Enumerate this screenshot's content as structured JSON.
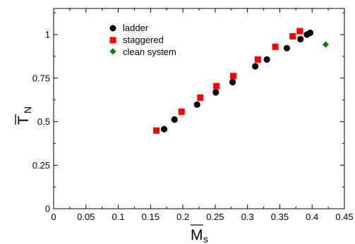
{
  "chart_data": {
    "type": "scatter",
    "xlabel": "M",
    "xlabel_sub": "s",
    "ylabel": "T",
    "ylabel_sub": "N",
    "xlim": [
      0,
      0.45
    ],
    "ylim": [
      0,
      1.15
    ],
    "xticks": [
      "0",
      "0.05",
      "0.1",
      "0.15",
      "0.2",
      "0.25",
      "0.3",
      "0.35",
      "0.4",
      "0.45"
    ],
    "yticks": [
      "0",
      "0.25",
      "0.5",
      "0.75",
      "1"
    ],
    "legend_position": "top-left",
    "series": [
      {
        "name": "ladder",
        "marker": "circle",
        "color": "#000000",
        "points": [
          [
            0.171,
            0.457
          ],
          [
            0.187,
            0.512
          ],
          [
            0.222,
            0.598
          ],
          [
            0.251,
            0.668
          ],
          [
            0.277,
            0.727
          ],
          [
            0.312,
            0.818
          ],
          [
            0.33,
            0.857
          ],
          [
            0.361,
            0.922
          ],
          [
            0.382,
            0.974
          ],
          [
            0.392,
            1.0
          ],
          [
            0.397,
            1.01
          ]
        ]
      },
      {
        "name": "staggered",
        "marker": "square",
        "color": "#ff0000",
        "points": [
          [
            0.159,
            0.449
          ],
          [
            0.198,
            0.557
          ],
          [
            0.227,
            0.638
          ],
          [
            0.252,
            0.704
          ],
          [
            0.278,
            0.762
          ],
          [
            0.316,
            0.857
          ],
          [
            0.343,
            0.93
          ],
          [
            0.37,
            0.99
          ],
          [
            0.381,
            1.02
          ]
        ]
      },
      {
        "name": "clean system",
        "marker": "diamond",
        "color": "#008000",
        "points": [
          [
            0.421,
            0.943
          ]
        ]
      }
    ]
  }
}
